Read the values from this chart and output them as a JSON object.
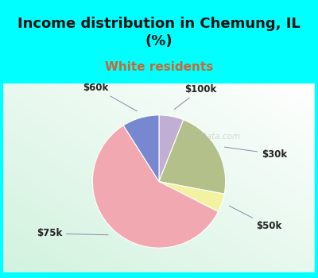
{
  "title": "Income distribution in Chemung, IL\n(%)",
  "subtitle": "White residents",
  "title_color": "#111111",
  "subtitle_color": "#cc6633",
  "bg_color": "#00ffff",
  "title_fontsize": 13,
  "subtitle_fontsize": 11,
  "label_fontsize": 8.5,
  "slices": [
    {
      "label": "$100k",
      "value": 6.0,
      "color": "#c0aed4"
    },
    {
      "label": "$30k",
      "value": 22.0,
      "color": "#b3c08a"
    },
    {
      "label": "$50k",
      "value": 4.5,
      "color": "#f2f2a0"
    },
    {
      "label": "$75k",
      "value": 58.5,
      "color": "#f2a8b0"
    },
    {
      "label": "$60k",
      "value": 9.0,
      "color": "#7888d0"
    }
  ],
  "watermark": "City-Data.com",
  "watermark_color": "#bbbbbb",
  "watermark_alpha": 0.55
}
